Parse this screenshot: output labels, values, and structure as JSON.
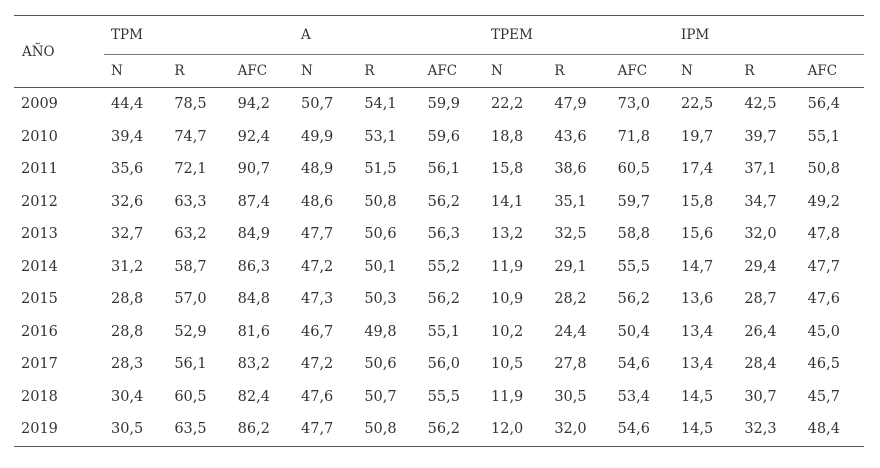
{
  "table": {
    "year_header": "AÑO",
    "groups": [
      "TPM",
      "A",
      "TPEM",
      "IPM"
    ],
    "subheaders": [
      "N",
      "R",
      "AFC"
    ],
    "rows": [
      {
        "year": "2009",
        "values": [
          "44,4",
          "78,5",
          "94,2",
          "50,7",
          "54,1",
          "59,9",
          "22,2",
          "47,9",
          "73,0",
          "22,5",
          "42,5",
          "56,4"
        ]
      },
      {
        "year": "2010",
        "values": [
          "39,4",
          "74,7",
          "92,4",
          "49,9",
          "53,1",
          "59,6",
          "18,8",
          "43,6",
          "71,8",
          "19,7",
          "39,7",
          "55,1"
        ]
      },
      {
        "year": "2011",
        "values": [
          "35,6",
          "72,1",
          "90,7",
          "48,9",
          "51,5",
          "56,1",
          "15,8",
          "38,6",
          "60,5",
          "17,4",
          "37,1",
          "50,8"
        ]
      },
      {
        "year": "2012",
        "values": [
          "32,6",
          "63,3",
          "87,4",
          "48,6",
          "50,8",
          "56,2",
          "14,1",
          "35,1",
          "59,7",
          "15,8",
          "34,7",
          "49,2"
        ]
      },
      {
        "year": "2013",
        "values": [
          "32,7",
          "63,2",
          "84,9",
          "47,7",
          "50,6",
          "56,3",
          "13,2",
          "32,5",
          "58,8",
          "15,6",
          "32,0",
          "47,8"
        ]
      },
      {
        "year": "2014",
        "values": [
          "31,2",
          "58,7",
          "86,3",
          "47,2",
          "50,1",
          "55,2",
          "11,9",
          "29,1",
          "55,5",
          "14,7",
          "29,4",
          "47,7"
        ]
      },
      {
        "year": "2015",
        "values": [
          "28,8",
          "57,0",
          "84,8",
          "47,3",
          "50,3",
          "56,2",
          "10,9",
          "28,2",
          "56,2",
          "13,6",
          "28,7",
          "47,6"
        ]
      },
      {
        "year": "2016",
        "values": [
          "28,8",
          "52,9",
          "81,6",
          "46,7",
          "49,8",
          "55,1",
          "10,2",
          "24,4",
          "50,4",
          "13,4",
          "26,4",
          "45,0"
        ]
      },
      {
        "year": "2017",
        "values": [
          "28,3",
          "56,1",
          "83,2",
          "47,2",
          "50,6",
          "56,0",
          "10,5",
          "27,8",
          "54,6",
          "13,4",
          "28,4",
          "46,5"
        ]
      },
      {
        "year": "2018",
        "values": [
          "30,4",
          "60,5",
          "82,4",
          "47,6",
          "50,7",
          "55,5",
          "11,9",
          "30,5",
          "53,4",
          "14,5",
          "30,7",
          "45,7"
        ]
      },
      {
        "year": "2019",
        "values": [
          "30,5",
          "63,5",
          "86,2",
          "47,7",
          "50,8",
          "56,2",
          "12,0",
          "32,0",
          "54,6",
          "14,5",
          "32,3",
          "48,4"
        ]
      }
    ]
  }
}
